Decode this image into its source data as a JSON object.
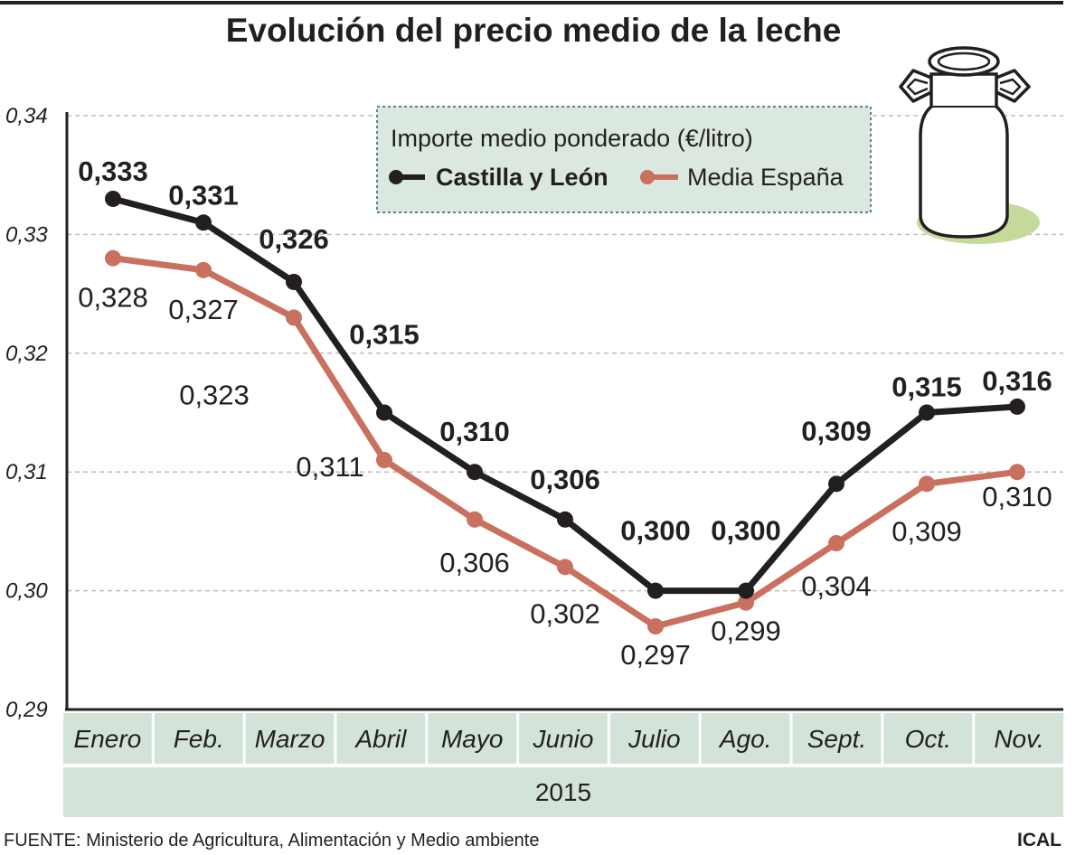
{
  "colors": {
    "cyl": "#231f20",
    "esp": "#c9705f",
    "band": "#d3e3d8",
    "legend_bg": "#dbe8e0",
    "legend_border": "#5e7f8a",
    "grid": "#bdbdbd",
    "can_shadow": "#c5da9a"
  },
  "icons": {
    "decoration": "milk-can-icon"
  },
  "chart_data": {
    "type": "line",
    "title": "Evolución del precio medio de la leche",
    "categories": [
      "Enero",
      "Feb.",
      "Marzo",
      "Abril",
      "Mayo",
      "Junio",
      "Julio",
      "Ago.",
      "Sept.",
      "Oct.",
      "Nov."
    ],
    "year_label": "2015",
    "ylim": [
      0.29,
      0.34
    ],
    "yticks": [
      0.29,
      0.3,
      0.31,
      0.32,
      0.33,
      0.34
    ],
    "ytick_labels": [
      "0,29",
      "0,30",
      "0,31",
      "0,32",
      "0,33",
      "0,34"
    ],
    "grid": "horizontal dashed",
    "legend": {
      "title": "Importe medio ponderado (€/litro)",
      "placement": "top-center"
    },
    "series": [
      {
        "name": "Castilla y León",
        "values": [
          0.333,
          0.331,
          0.326,
          0.315,
          0.31,
          0.306,
          0.3,
          0.3,
          0.309,
          0.315,
          0.3155
        ],
        "labels": [
          "0,333",
          "0,331",
          "0,326",
          "0,315",
          "0,310",
          "0,306",
          "0,300",
          "0,300",
          "0,309",
          "0,315",
          "0,316"
        ]
      },
      {
        "name": "Media España",
        "values": [
          0.328,
          0.327,
          0.323,
          0.311,
          0.306,
          0.302,
          0.297,
          0.299,
          0.304,
          0.309,
          0.31
        ],
        "labels": [
          "0,328",
          "0,327",
          "0,323",
          "0,311",
          "0,306",
          "0,302",
          "0,297",
          "0,299",
          "0,304",
          "0,309",
          "0,310"
        ]
      }
    ]
  },
  "footer": {
    "source": "FUENTE: Ministerio de Agricultura, Alimentación y Medio ambiente",
    "brand": "ICAL"
  }
}
